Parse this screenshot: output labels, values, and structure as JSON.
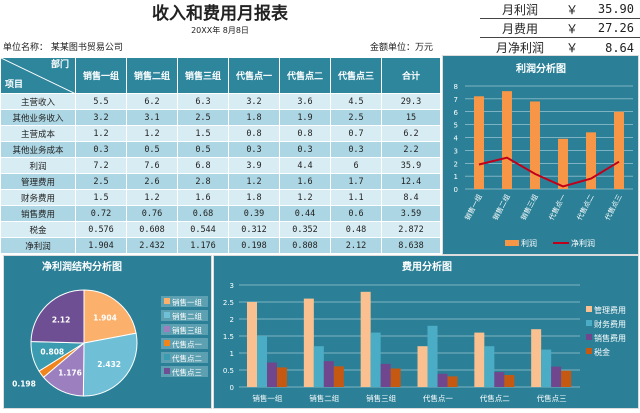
{
  "header": {
    "title": "收入和费用月报表",
    "date": "20XX年 8月8日",
    "company": "单位名称： 某某图书贸易公司",
    "unit": "金额单位：万元"
  },
  "summary": [
    {
      "label": "月利润",
      "currency": "￥",
      "value": "35.90"
    },
    {
      "label": "月费用",
      "currency": "￥",
      "value": "27.26"
    },
    {
      "label": "月净利润",
      "currency": "￥",
      "value": "8.64"
    }
  ],
  "table": {
    "corner_top": "部门",
    "corner_bottom": "项目",
    "columns": [
      "销售一组",
      "销售二组",
      "销售三组",
      "代售点一",
      "代售点二",
      "代售点三",
      "合计"
    ],
    "rows": [
      {
        "label": "主营收入",
        "values": [
          "5.5",
          "6.2",
          "6.3",
          "3.2",
          "3.6",
          "4.5",
          "29.3"
        ]
      },
      {
        "label": "其他业务收入",
        "values": [
          "3.2",
          "3.1",
          "2.5",
          "1.8",
          "1.9",
          "2.5",
          "15"
        ]
      },
      {
        "label": "主营成本",
        "values": [
          "1.2",
          "1.2",
          "1.5",
          "0.8",
          "0.8",
          "0.7",
          "6.2"
        ]
      },
      {
        "label": "其他业务成本",
        "values": [
          "0.3",
          "0.5",
          "0.5",
          "0.3",
          "0.3",
          "0.3",
          "2.2"
        ]
      },
      {
        "label": "利润",
        "values": [
          "7.2",
          "7.6",
          "6.8",
          "3.9",
          "4.4",
          "6",
          "35.9"
        ]
      },
      {
        "label": "管理费用",
        "values": [
          "2.5",
          "2.6",
          "2.8",
          "1.2",
          "1.6",
          "1.7",
          "12.4"
        ]
      },
      {
        "label": "财务费用",
        "values": [
          "1.5",
          "1.2",
          "1.6",
          "1.8",
          "1.2",
          "1.1",
          "8.4"
        ]
      },
      {
        "label": "销售费用",
        "values": [
          "0.72",
          "0.76",
          "0.68",
          "0.39",
          "0.44",
          "0.6",
          "3.59"
        ]
      },
      {
        "label": "税金",
        "values": [
          "0.576",
          "0.608",
          "0.544",
          "0.312",
          "0.352",
          "0.48",
          "2.872"
        ]
      },
      {
        "label": "净利润",
        "values": [
          "1.904",
          "2.432",
          "1.176",
          "0.198",
          "0.808",
          "2.12",
          "8.638"
        ]
      }
    ]
  },
  "chart_data": [
    {
      "type": "bar",
      "title": "利润分析图",
      "categories": [
        "销售一组",
        "销售二组",
        "销售三组",
        "代售点一",
        "代售点二",
        "代售点三"
      ],
      "ylim": [
        0,
        8
      ],
      "yticks": [
        0,
        1,
        2,
        3,
        4,
        5,
        6,
        7,
        8
      ],
      "grid": true,
      "legend": "bottom",
      "series": [
        {
          "name": "利润",
          "type": "bar",
          "color": "#f79646",
          "values": [
            7.2,
            7.6,
            6.8,
            3.9,
            4.4,
            6
          ]
        },
        {
          "name": "净利润",
          "type": "line",
          "color": "#c0001a",
          "values": [
            1.904,
            2.432,
            1.176,
            0.198,
            0.808,
            2.12
          ]
        }
      ]
    },
    {
      "type": "pie",
      "title": "净利润结构分析图",
      "legend": "right",
      "categories": [
        "销售一组",
        "销售二组",
        "销售三组",
        "代售点一",
        "代售点二",
        "代售点三"
      ],
      "values": [
        1.904,
        2.432,
        1.176,
        0.198,
        0.808,
        2.12
      ],
      "labels": [
        "1.904",
        "2.432",
        "1.176",
        "0.198",
        "0.808",
        "2.12"
      ],
      "colors": [
        "#fbb06b",
        "#6fbfd6",
        "#9b7fbf",
        "#f0851e",
        "#3b9bb0",
        "#6f4f93"
      ]
    },
    {
      "type": "bar",
      "title": "费用分析图",
      "categories": [
        "销售一组",
        "销售二组",
        "销售三组",
        "代售点一",
        "代售点二",
        "代售点三"
      ],
      "ylim": [
        0,
        3
      ],
      "yticks": [
        "0",
        "0.5",
        "1",
        "1.5",
        "2",
        "2.5",
        "3"
      ],
      "grid": true,
      "legend": "right",
      "series": [
        {
          "name": "管理费用",
          "color": "#fac090",
          "values": [
            2.5,
            2.6,
            2.8,
            1.2,
            1.6,
            1.7
          ]
        },
        {
          "name": "财务费用",
          "color": "#4bacc6",
          "values": [
            1.5,
            1.2,
            1.6,
            1.8,
            1.2,
            1.1
          ]
        },
        {
          "name": "销售费用",
          "color": "#70478e",
          "values": [
            0.72,
            0.76,
            0.68,
            0.39,
            0.44,
            0.6
          ]
        },
        {
          "name": "税金",
          "color": "#c65911",
          "values": [
            0.576,
            0.608,
            0.544,
            0.312,
            0.352,
            0.48
          ]
        }
      ]
    }
  ]
}
